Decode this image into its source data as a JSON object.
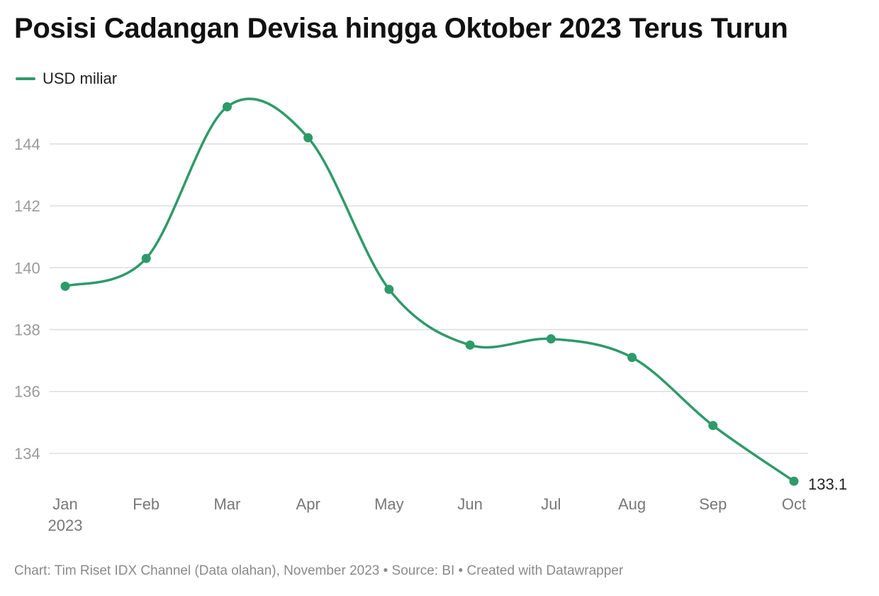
{
  "title": "Posisi Cadangan Devisa hingga Oktober 2023 Terus Turun",
  "legend": {
    "label": "USD miliar",
    "color": "#2e9a6a"
  },
  "footer": {
    "text": "Chart: Tim Riset IDX Channel (Data olahan), November 2023 • Source: BI • Created with Datawrapper"
  },
  "colors": {
    "line": "#2e9a6a",
    "grid": "#dddddd",
    "axis_text": "#9a9a9a",
    "x_text": "#777777",
    "end_label": "#222222"
  },
  "chart_data": {
    "type": "line",
    "categories": [
      "Jan",
      "Feb",
      "Mar",
      "Apr",
      "May",
      "Jun",
      "Jul",
      "Aug",
      "Sep",
      "Oct"
    ],
    "year_label": "2023",
    "series": [
      {
        "name": "USD miliar",
        "values": [
          139.4,
          140.3,
          145.2,
          144.2,
          139.3,
          137.5,
          137.7,
          137.1,
          134.9,
          133.1
        ]
      }
    ],
    "y_ticks": [
      134,
      136,
      138,
      140,
      142,
      144
    ],
    "ylim": [
      132.6,
      145.9
    ],
    "end_label": "133.1",
    "grid": true,
    "curve": "smooth"
  }
}
